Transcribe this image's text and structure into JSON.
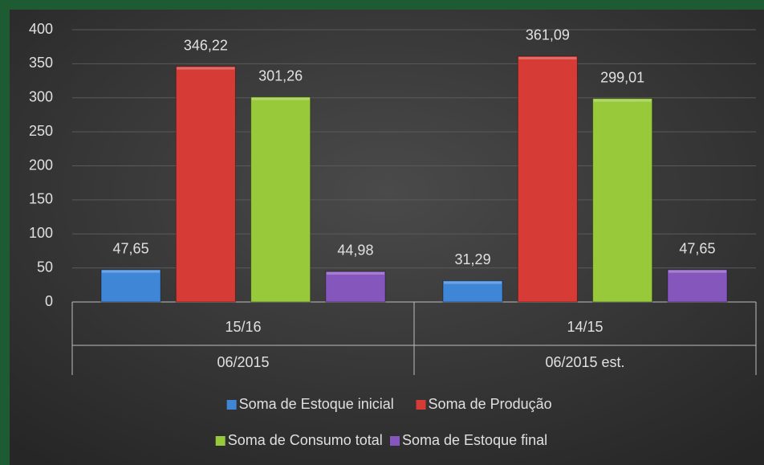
{
  "chart_data": {
    "type": "bar",
    "categories": [
      "15/16",
      "14/15"
    ],
    "category_groups": [
      "06/2015",
      "06/2015 est."
    ],
    "series": [
      {
        "name": "Soma de Estoque inicial",
        "color": "#3f86d6",
        "values": [
          47.65,
          31.29
        ],
        "value_labels": [
          "47,65",
          "31,29"
        ]
      },
      {
        "name": "Soma de Produção",
        "color": "#d63b35",
        "values": [
          346.22,
          361.09
        ],
        "value_labels": [
          "346,22",
          "361,09"
        ]
      },
      {
        "name": "Soma de Consumo total",
        "color": "#97c93a",
        "values": [
          301.26,
          299.01
        ],
        "value_labels": [
          "301,26",
          "299,01"
        ]
      },
      {
        "name": "Soma de Estoque final",
        "color": "#8557bd",
        "values": [
          44.98,
          47.65
        ],
        "value_labels": [
          "44,98",
          "47,65"
        ]
      }
    ],
    "ylim": [
      0,
      400
    ],
    "yticks": [
      0,
      50,
      100,
      150,
      200,
      250,
      300,
      350,
      400
    ],
    "grid": true
  }
}
